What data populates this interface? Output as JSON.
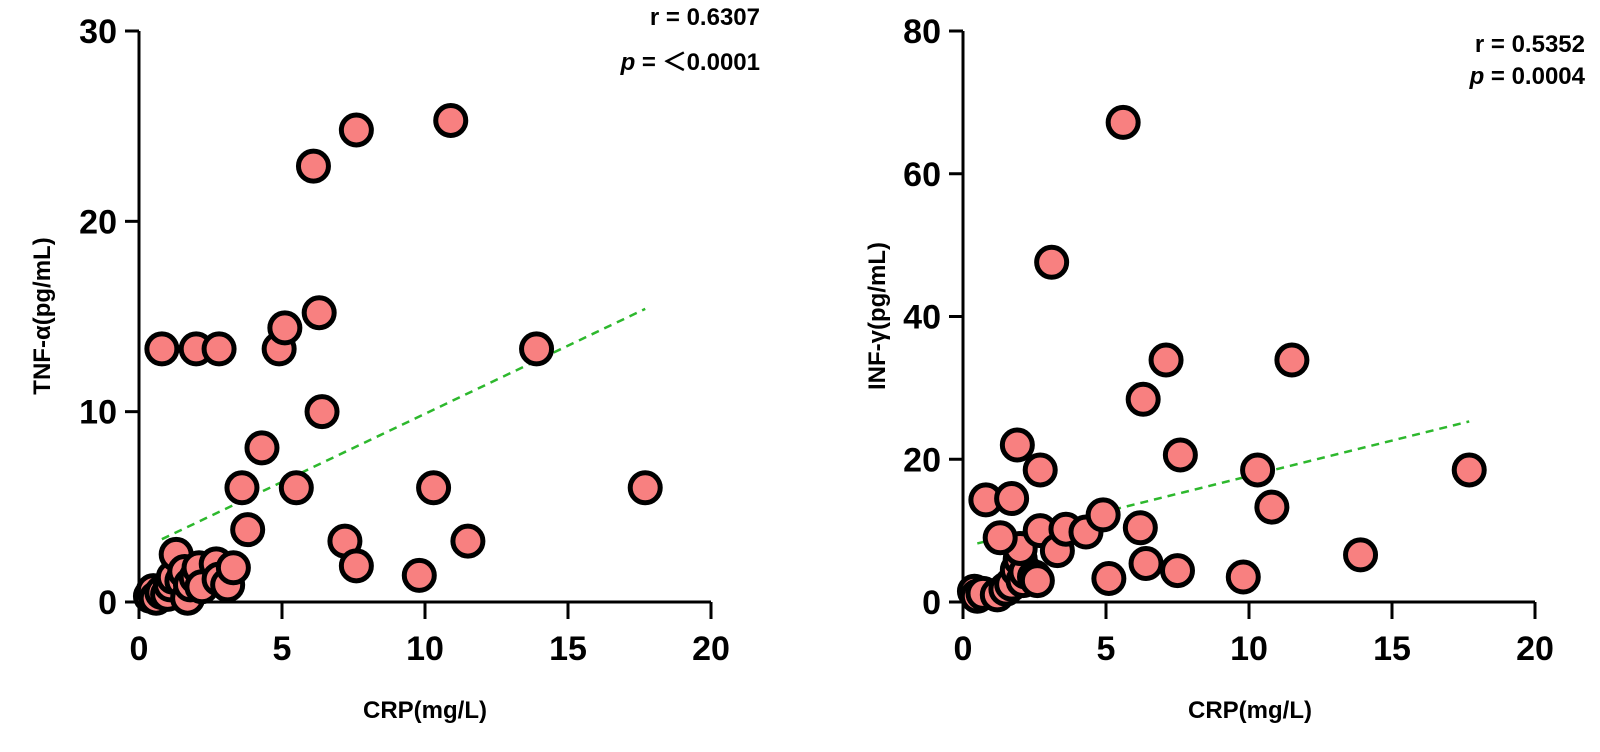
{
  "chart_data": [
    {
      "type": "scatter",
      "title": "",
      "xlabel": "CRP(mg/L)",
      "ylabel": "TNF-α(pg/mL)",
      "xlim": [
        0,
        20
      ],
      "ylim": [
        0,
        30
      ],
      "xticks": [
        0,
        5,
        10,
        15,
        20
      ],
      "yticks": [
        0,
        10,
        20,
        30
      ],
      "grid": false,
      "marker_fill": "#F88080",
      "marker_edge": "#000000",
      "trendline_color": "#2DB82D",
      "annotations": {
        "r_label": "r = 0.6307",
        "p_label_prefix": "p",
        "p_label_value": " = ＜0.0001"
      },
      "trendline": {
        "x": [
          0.8,
          17.7
        ],
        "y": [
          3.3,
          15.4
        ]
      },
      "points": [
        [
          0.4,
          0.3
        ],
        [
          0.5,
          0.6
        ],
        [
          0.6,
          0.2
        ],
        [
          0.8,
          0.5
        ],
        [
          1.0,
          0.4
        ],
        [
          1.1,
          0.9
        ],
        [
          1.2,
          1.3
        ],
        [
          1.3,
          2.5
        ],
        [
          1.5,
          1.1
        ],
        [
          1.6,
          1.6
        ],
        [
          1.7,
          0.2
        ],
        [
          1.8,
          0.9
        ],
        [
          2.0,
          1.3
        ],
        [
          2.1,
          1.8
        ],
        [
          2.2,
          0.8
        ],
        [
          2.7,
          2.0
        ],
        [
          2.8,
          1.2
        ],
        [
          3.1,
          0.9
        ],
        [
          3.3,
          1.8
        ],
        [
          0.8,
          13.3
        ],
        [
          2.0,
          13.3
        ],
        [
          2.8,
          13.3
        ],
        [
          3.6,
          6.0
        ],
        [
          3.8,
          3.8
        ],
        [
          4.3,
          8.1
        ],
        [
          4.9,
          13.3
        ],
        [
          5.1,
          14.4
        ],
        [
          5.5,
          6.0
        ],
        [
          6.1,
          22.9
        ],
        [
          6.3,
          15.2
        ],
        [
          6.4,
          10.0
        ],
        [
          7.2,
          3.2
        ],
        [
          7.6,
          1.9
        ],
        [
          7.6,
          24.8
        ],
        [
          9.8,
          1.4
        ],
        [
          10.3,
          6.0
        ],
        [
          10.9,
          25.3
        ],
        [
          11.5,
          3.2
        ],
        [
          13.9,
          13.3
        ],
        [
          17.7,
          6.0
        ]
      ]
    },
    {
      "type": "scatter",
      "title": "",
      "xlabel": "CRP(mg/L)",
      "ylabel": "INF-γ(pg/mL)",
      "xlim": [
        0,
        20
      ],
      "ylim": [
        0,
        80
      ],
      "xticks": [
        0,
        5,
        10,
        15,
        20
      ],
      "yticks": [
        0,
        20,
        40,
        60,
        80
      ],
      "grid": false,
      "marker_fill": "#F88080",
      "marker_edge": "#000000",
      "trendline_color": "#2DB82D",
      "annotations": {
        "r_label": "r = 0.5352",
        "p_label_prefix": "p",
        "p_label_value": " = 0.0004"
      },
      "trendline": {
        "x": [
          0.5,
          17.7
        ],
        "y": [
          8.2,
          25.3
        ]
      },
      "points": [
        [
          0.4,
          1.5
        ],
        [
          0.5,
          0.8
        ],
        [
          0.7,
          1.2
        ],
        [
          1.2,
          1.0
        ],
        [
          1.5,
          1.8
        ],
        [
          1.7,
          2.5
        ],
        [
          1.9,
          4.5
        ],
        [
          2.0,
          6.0
        ],
        [
          2.1,
          3.0
        ],
        [
          2.2,
          4.2
        ],
        [
          2.5,
          3.5
        ],
        [
          2.6,
          3.0
        ],
        [
          2.0,
          7.5
        ],
        [
          0.8,
          14.3
        ],
        [
          1.3,
          9.0
        ],
        [
          1.7,
          14.5
        ],
        [
          1.9,
          22.0
        ],
        [
          2.7,
          18.5
        ],
        [
          2.7,
          10.0
        ],
        [
          3.3,
          7.2
        ],
        [
          3.6,
          10.2
        ],
        [
          4.3,
          9.8
        ],
        [
          4.9,
          12.2
        ],
        [
          3.1,
          47.6
        ],
        [
          5.1,
          3.3
        ],
        [
          5.6,
          67.2
        ],
        [
          6.2,
          10.4
        ],
        [
          6.3,
          28.4
        ],
        [
          6.4,
          5.4
        ],
        [
          7.1,
          33.9
        ],
        [
          7.5,
          4.4
        ],
        [
          7.6,
          20.6
        ],
        [
          9.8,
          3.5
        ],
        [
          10.3,
          18.5
        ],
        [
          10.8,
          13.3
        ],
        [
          11.5,
          33.9
        ],
        [
          13.9,
          6.6
        ],
        [
          17.7,
          18.5
        ]
      ]
    }
  ]
}
